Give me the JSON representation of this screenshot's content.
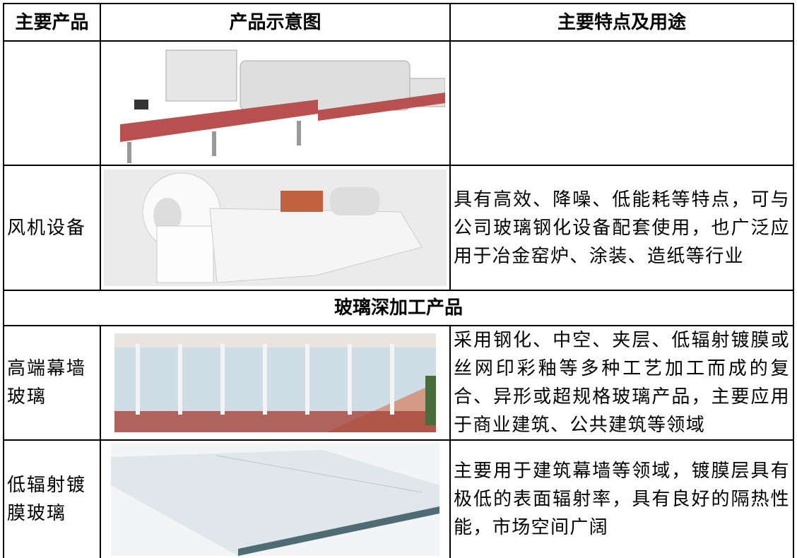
{
  "table": {
    "header": [
      "主要产品",
      "产品示意图",
      "主要特点及用途"
    ],
    "fan": {
      "product": "风机设备",
      "features": "具有高效、降噪、低能耗等特点，可与公司玻璃钢化设备配套使用，也广泛应用于冶金窑炉、涂装、造纸等行业"
    },
    "section": "玻璃深加工产品",
    "curtain": {
      "product": "高端幕墙玻璃",
      "features": "采用钢化、中空、夹层、低辐射镀膜或丝网印彩釉等多种工艺加工而成的复合、异形或超规格玻璃产品，主要应用于商业建筑、公共建筑等领域"
    },
    "lowe": {
      "product": "低辐射镀膜玻璃",
      "features": "主要用于建筑幕墙等领域，镀膜层具有极低的表面辐射率，具有良好的隔热性能，市场空间广阔"
    }
  }
}
